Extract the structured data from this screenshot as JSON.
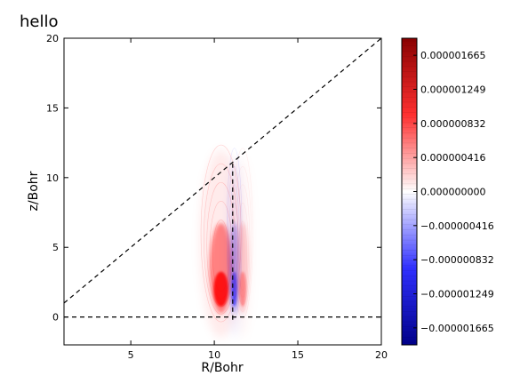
{
  "chart_data": {
    "type": "heatmap",
    "title": "hello",
    "xlabel": "R/Bohr",
    "ylabel": "z/Bohr",
    "xlim": [
      1,
      20
    ],
    "ylim": [
      -2,
      20
    ],
    "x_ticks": [
      "5",
      "10",
      "15",
      "20"
    ],
    "x_tick_values": [
      5,
      10,
      15,
      20
    ],
    "y_ticks": [
      "0",
      "5",
      "10",
      "15",
      "20"
    ],
    "y_tick_values": [
      0,
      5,
      10,
      15,
      20
    ],
    "colormap": "bwr (blue-white-red)",
    "colors": {
      "positive": "#ff0000",
      "negative": "#0000ff",
      "zero": "#ffffff"
    },
    "colorbar": {
      "range": [
        -1.873e-06,
        1.873e-06
      ],
      "tick_labels": [
        "0.000001665",
        "0.000001249",
        "0.000000832",
        "0.000000416",
        "0.000000000",
        "−0.000000416",
        "−0.000000832",
        "−0.000001249",
        "−0.000001665"
      ],
      "tick_values": [
        1.665e-06,
        1.249e-06,
        8.32e-07,
        4.16e-07,
        0.0,
        -4.16e-07,
        -8.32e-07,
        -1.249e-06,
        -1.665e-06
      ]
    },
    "reference_lines": [
      {
        "style": "dashed",
        "from": [
          1,
          1
        ],
        "to": [
          20,
          20
        ]
      },
      {
        "style": "dashed",
        "from": [
          1,
          0
        ],
        "to": [
          20,
          0
        ]
      },
      {
        "style": "dashed",
        "from": [
          11.1,
          -0.2
        ],
        "to": [
          11.1,
          11.0
        ]
      }
    ],
    "features": [
      {
        "sign": "positive",
        "center": [
          10.4,
          2.0
        ],
        "r_halfwidth": 0.4,
        "z_range": [
          -1.5,
          12.0
        ],
        "peak": 1.873e-06
      },
      {
        "sign": "negative",
        "center": [
          11.2,
          2.0
        ],
        "r_halfwidth": 0.15,
        "z_range": [
          -1.5,
          11.5
        ],
        "peak": -1.2e-06
      },
      {
        "sign": "positive",
        "center": [
          11.7,
          2.0
        ],
        "r_halfwidth": 0.2,
        "z_range": [
          -1.5,
          11.5
        ],
        "peak": 7e-07
      }
    ]
  }
}
